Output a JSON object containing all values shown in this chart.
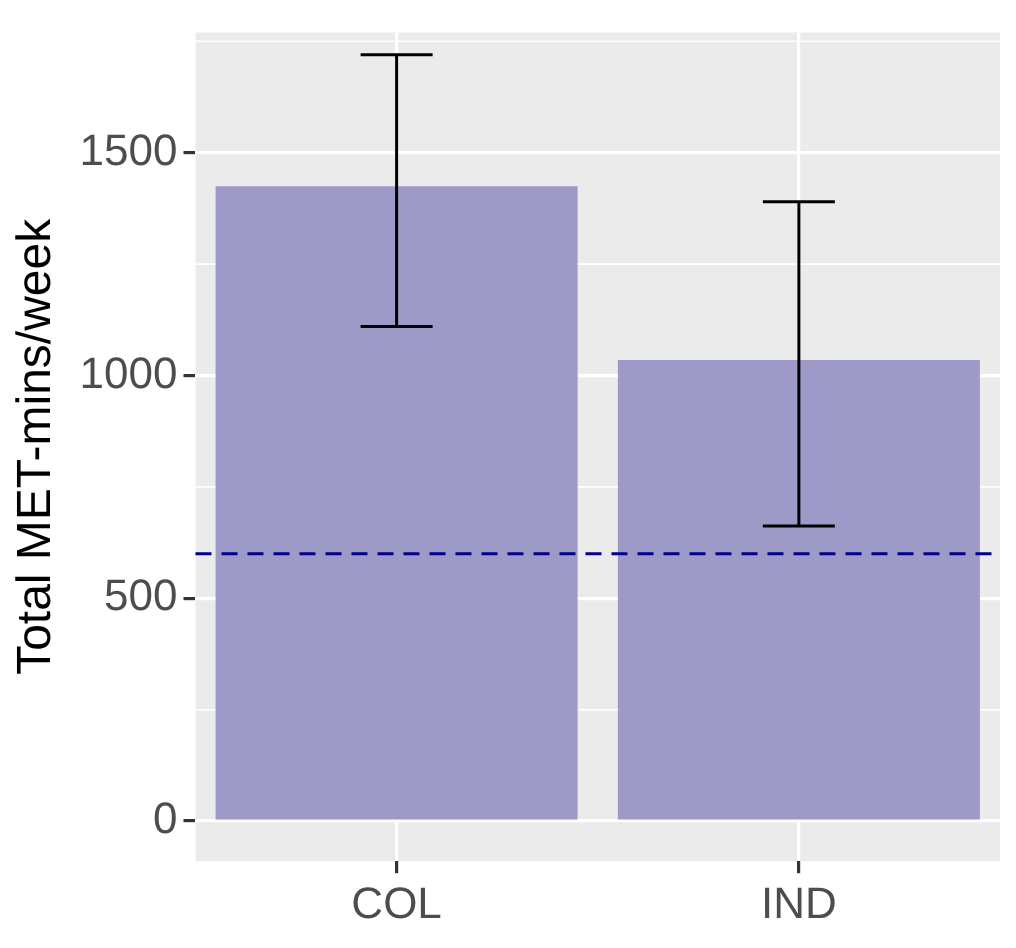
{
  "chart_data": {
    "type": "bar",
    "ylabel": "Total MET-mins/week",
    "categories": [
      "COL",
      "IND"
    ],
    "values": [
      1425,
      1035
    ],
    "errors": [
      [
        1110,
        1720
      ],
      [
        662,
        1390
      ]
    ],
    "color": "#9e9ac8",
    "ylim": [
      -90,
      1770
    ],
    "yticks": [
      0,
      500,
      1000,
      1500
    ],
    "grid": true,
    "ref_lines": [
      {
        "axis": "y",
        "value": 600,
        "color": "#00008b",
        "line_style": "dashed"
      }
    ]
  }
}
